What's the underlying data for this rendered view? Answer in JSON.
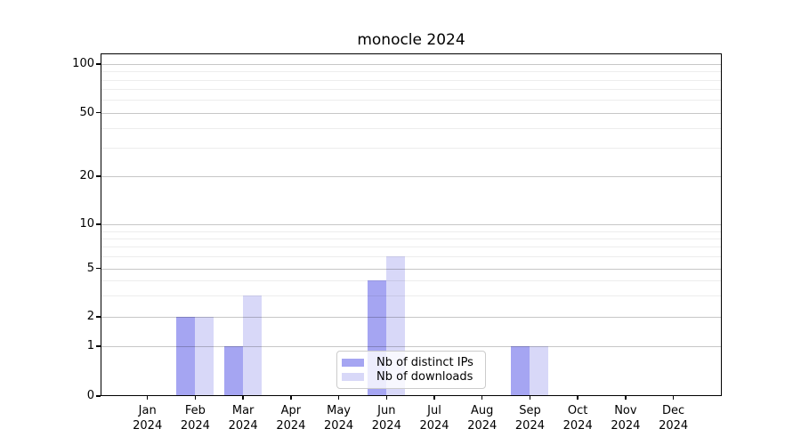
{
  "title": "monocle 2024",
  "colors": {
    "distinct_ips": "#a5a5f2",
    "downloads": "#d8d8f8",
    "major_grid": "#c8c8c8",
    "minor_grid": "#ededed",
    "spine": "#000000",
    "legend_border": "#cccccc",
    "text": "#000000"
  },
  "legend": {
    "items": [
      {
        "label": "Nb of distinct IPs",
        "series": "distinct_ips"
      },
      {
        "label": "Nb of downloads",
        "series": "downloads"
      }
    ]
  },
  "x_axis": {
    "months": [
      {
        "month": "Jan",
        "year": "2024"
      },
      {
        "month": "Feb",
        "year": "2024"
      },
      {
        "month": "Mar",
        "year": "2024"
      },
      {
        "month": "Apr",
        "year": "2024"
      },
      {
        "month": "May",
        "year": "2024"
      },
      {
        "month": "Jun",
        "year": "2024"
      },
      {
        "month": "Jul",
        "year": "2024"
      },
      {
        "month": "Aug",
        "year": "2024"
      },
      {
        "month": "Sep",
        "year": "2024"
      },
      {
        "month": "Oct",
        "year": "2024"
      },
      {
        "month": "Nov",
        "year": "2024"
      },
      {
        "month": "Dec",
        "year": "2024"
      }
    ]
  },
  "chart_data": {
    "type": "bar",
    "title": "monocle 2024",
    "categories": [
      "Jan 2024",
      "Feb 2024",
      "Mar 2024",
      "Apr 2024",
      "May 2024",
      "Jun 2024",
      "Jul 2024",
      "Aug 2024",
      "Sep 2024",
      "Oct 2024",
      "Nov 2024",
      "Dec 2024"
    ],
    "series": [
      {
        "name": "Nb of distinct IPs",
        "color": "#a5a5f2",
        "values": [
          0,
          2,
          1,
          0,
          0,
          4,
          0,
          0,
          1,
          0,
          0,
          0
        ]
      },
      {
        "name": "Nb of downloads",
        "color": "#d8d8f8",
        "values": [
          0,
          2,
          3,
          0,
          0,
          6,
          0,
          0,
          1,
          0,
          0,
          0
        ]
      }
    ],
    "yscale": "log-like (compressed near zero, 0 baseline shown)",
    "yticks_major": [
      0,
      1,
      2,
      5,
      10,
      20,
      50,
      100
    ],
    "yticks_minor": [
      3,
      4,
      6,
      7,
      8,
      9,
      30,
      40,
      60,
      70,
      80,
      90
    ],
    "ylim": [
      0,
      117
    ],
    "grid": true,
    "legend_position": "lower center"
  }
}
